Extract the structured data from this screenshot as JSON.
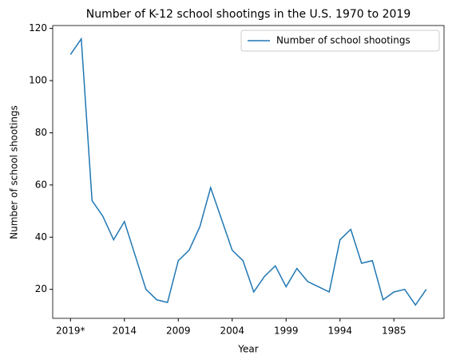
{
  "chart_data": {
    "type": "line",
    "title": "Number of K-12 school shootings in the U.S. 1970 to 2019",
    "xlabel": "Year",
    "ylabel": "Number of school shootings",
    "categories": [
      "2019*",
      null,
      null,
      null,
      null,
      "2014",
      null,
      null,
      null,
      null,
      "2009",
      null,
      null,
      null,
      null,
      "2004",
      null,
      null,
      null,
      null,
      "1999",
      null,
      null,
      null,
      null,
      "1994",
      null,
      null,
      null,
      null,
      "1985",
      null,
      null,
      null
    ],
    "series": [
      {
        "name": "Number of school shootings",
        "color": "#1f77b4",
        "values": [
          110,
          116,
          54,
          48,
          39,
          46,
          33,
          20,
          16,
          15,
          31,
          35,
          44,
          59,
          47,
          35,
          31,
          19,
          25,
          29,
          21,
          28,
          23,
          21,
          19,
          39,
          43,
          30,
          31,
          16,
          19,
          20,
          14,
          20
        ]
      }
    ],
    "ylim": [
      8.9,
      121.1
    ],
    "yticks": [
      20,
      40,
      60,
      80,
      100,
      120
    ],
    "legend": "upper right"
  }
}
